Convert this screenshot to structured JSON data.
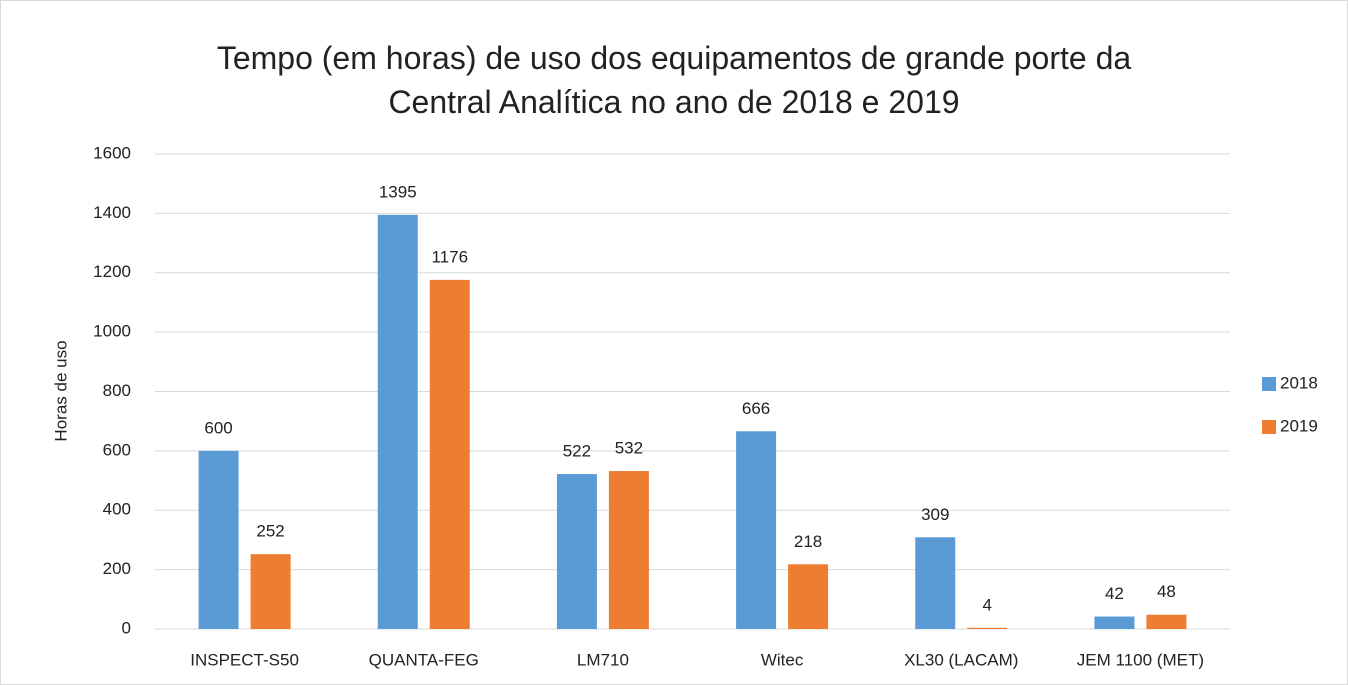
{
  "chart_data": {
    "type": "bar",
    "title": "Tempo (em horas) de uso dos equipamentos de grande porte da Central Analítica no ano de 2018 e 2019",
    "y_label": "Horas de uso",
    "categories": [
      "INSPECT-S50",
      "QUANTA-FEG",
      "LM710",
      "Witec",
      "XL30 (LACAM)",
      "JEM 1100 (MET)"
    ],
    "series": [
      {
        "name": "2018",
        "color": "#5b9bd5",
        "values": [
          600,
          1395,
          522,
          666,
          309,
          42
        ]
      },
      {
        "name": "2019",
        "color": "#ed7d31",
        "values": [
          252,
          1176,
          532,
          218,
          4,
          48
        ]
      }
    ],
    "ylim": [
      0,
      1600
    ],
    "yticks": [
      0,
      200,
      400,
      600,
      800,
      1000,
      1200,
      1400,
      1600
    ],
    "grid": true,
    "legend": "right"
  }
}
